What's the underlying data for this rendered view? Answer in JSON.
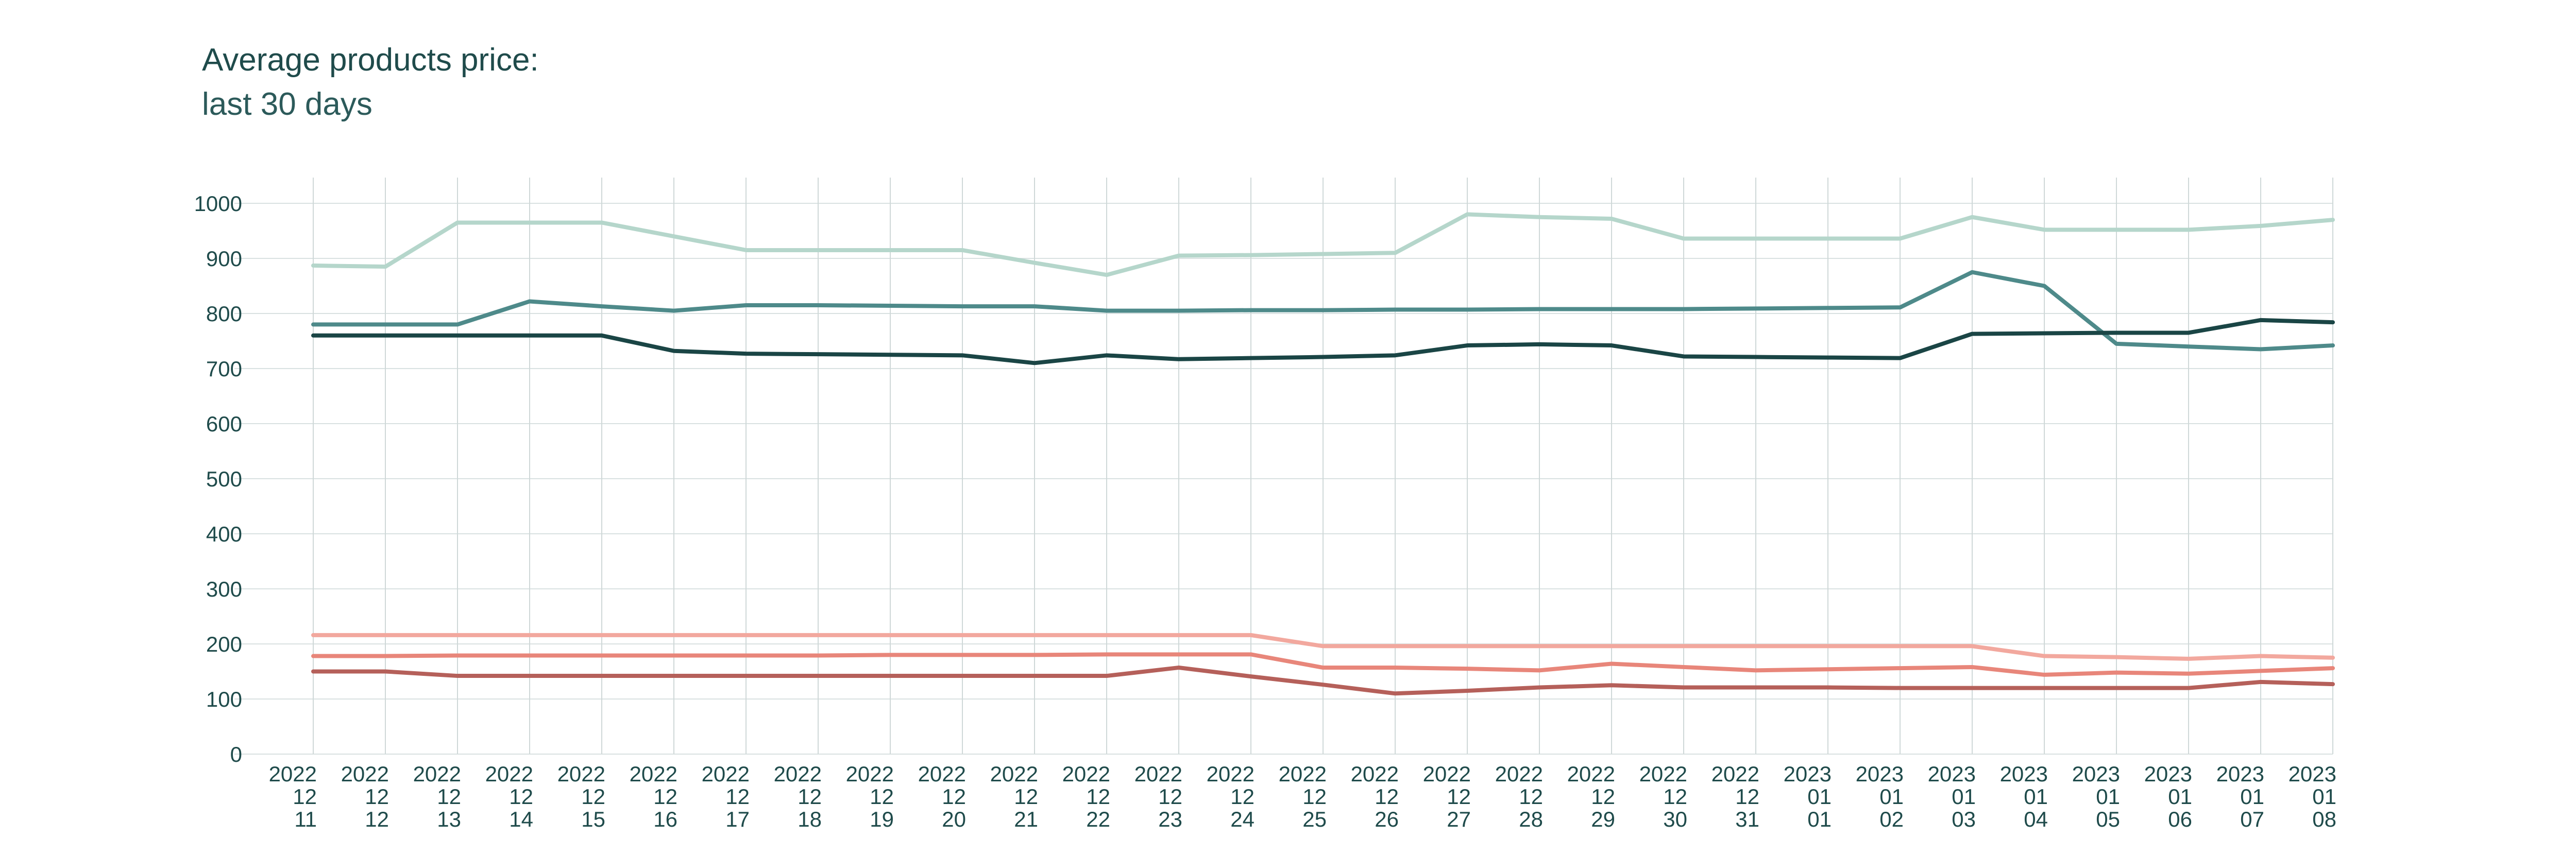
{
  "title": "Average products price:",
  "subtitle": "last 30 days",
  "chart_data": {
    "type": "line",
    "title": "Average products price:",
    "subtitle": "last 30 days",
    "xlabel": "",
    "ylabel": "",
    "ylim": [
      0,
      1000
    ],
    "yticks": [
      0,
      100,
      200,
      300,
      400,
      500,
      600,
      700,
      800,
      900,
      1000
    ],
    "grid": true,
    "legend": "none",
    "x": [
      "2022-12-11",
      "2022-12-12",
      "2022-12-13",
      "2022-12-14",
      "2022-12-15",
      "2022-12-16",
      "2022-12-17",
      "2022-12-18",
      "2022-12-19",
      "2022-12-20",
      "2022-12-21",
      "2022-12-22",
      "2022-12-23",
      "2022-12-24",
      "2022-12-25",
      "2022-12-26",
      "2022-12-27",
      "2022-12-28",
      "2022-12-29",
      "2022-12-30",
      "2022-12-31",
      "2023-01-01",
      "2023-01-02",
      "2023-01-03",
      "2023-01-04",
      "2023-01-05",
      "2023-01-06",
      "2023-01-07",
      "2023-01-08"
    ],
    "x_tick_labels": [
      [
        "2022",
        "12",
        "11"
      ],
      [
        "2022",
        "12",
        "12"
      ],
      [
        "2022",
        "12",
        "13"
      ],
      [
        "2022",
        "12",
        "14"
      ],
      [
        "2022",
        "12",
        "15"
      ],
      [
        "2022",
        "12",
        "16"
      ],
      [
        "2022",
        "12",
        "17"
      ],
      [
        "2022",
        "12",
        "18"
      ],
      [
        "2022",
        "12",
        "19"
      ],
      [
        "2022",
        "12",
        "20"
      ],
      [
        "2022",
        "12",
        "21"
      ],
      [
        "2022",
        "12",
        "22"
      ],
      [
        "2022",
        "12",
        "23"
      ],
      [
        "2022",
        "12",
        "24"
      ],
      [
        "2022",
        "12",
        "25"
      ],
      [
        "2022",
        "12",
        "26"
      ],
      [
        "2022",
        "12",
        "27"
      ],
      [
        "2022",
        "12",
        "28"
      ],
      [
        "2022",
        "12",
        "29"
      ],
      [
        "2022",
        "12",
        "30"
      ],
      [
        "2022",
        "12",
        "31"
      ],
      [
        "2023",
        "01",
        "01"
      ],
      [
        "2023",
        "01",
        "02"
      ],
      [
        "2023",
        "01",
        "03"
      ],
      [
        "2023",
        "01",
        "04"
      ],
      [
        "2023",
        "01",
        "05"
      ],
      [
        "2023",
        "01",
        "06"
      ],
      [
        "2023",
        "01",
        "07"
      ],
      [
        "2023",
        "01",
        "08"
      ]
    ],
    "series": [
      {
        "color": "#b5d6cb",
        "values": [
          887,
          885,
          965,
          965,
          965,
          940,
          915,
          915,
          915,
          915,
          892,
          870,
          905,
          906,
          908,
          910,
          980,
          975,
          972,
          936,
          936,
          936,
          936,
          975,
          952,
          952,
          952,
          959,
          970
        ]
      },
      {
        "color": "#4e8a8a",
        "values": [
          780,
          780,
          780,
          822,
          813,
          805,
          815,
          815,
          814,
          813,
          813,
          805,
          805,
          806,
          806,
          807,
          807,
          808,
          808,
          808,
          809,
          810,
          811,
          875,
          850,
          745,
          740,
          735,
          742
        ]
      },
      {
        "color": "#1a4545",
        "values": [
          760,
          760,
          760,
          760,
          760,
          732,
          727,
          726,
          725,
          724,
          710,
          724,
          717,
          719,
          721,
          724,
          742,
          744,
          742,
          722,
          721,
          720,
          719,
          763,
          764,
          765,
          765,
          788,
          784
        ]
      },
      {
        "color": "#f2a89e",
        "values": [
          216,
          216,
          216,
          216,
          216,
          216,
          216,
          216,
          216,
          216,
          216,
          216,
          216,
          216,
          196,
          196,
          196,
          196,
          196,
          196,
          196,
          196,
          196,
          196,
          178,
          176,
          173,
          178,
          175
        ]
      },
      {
        "color": "#e8867a",
        "values": [
          178,
          178,
          179,
          179,
          179,
          179,
          179,
          179,
          180,
          180,
          180,
          181,
          181,
          181,
          157,
          157,
          155,
          152,
          164,
          158,
          152,
          154,
          156,
          158,
          144,
          148,
          146,
          151,
          156
        ]
      },
      {
        "color": "#b5605a",
        "values": [
          150,
          150,
          142,
          142,
          142,
          142,
          142,
          142,
          142,
          142,
          142,
          142,
          157,
          141,
          126,
          110,
          115,
          121,
          125,
          121,
          121,
          121,
          120,
          120,
          120,
          120,
          120,
          131,
          127
        ]
      }
    ]
  }
}
